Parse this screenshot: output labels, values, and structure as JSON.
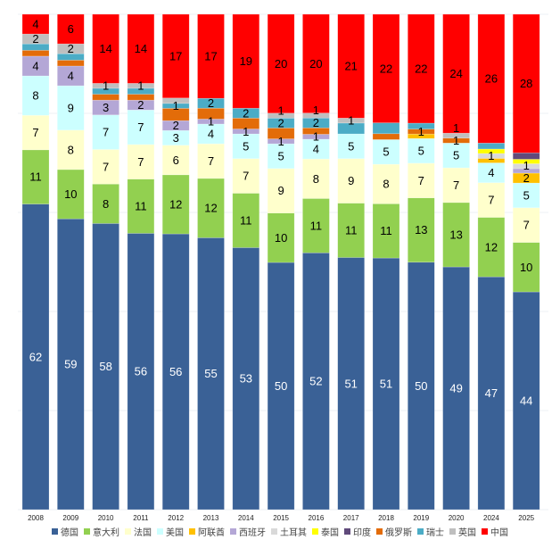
{
  "chart_data": {
    "type": "bar",
    "stacked": true,
    "normalized_percent": true,
    "title": "",
    "xlabel": "",
    "ylabel": "",
    "ylim": [
      0,
      100
    ],
    "legend_position": "bottom",
    "note": "Segments whose values are not whole numbers carry no printed label in the original",
    "categories": [
      "2008",
      "2009",
      "2010",
      "2011",
      "2012",
      "2013",
      "2014",
      "2015",
      "2016",
      "2017",
      "2018",
      "2019",
      "2020",
      "2024",
      "2025"
    ],
    "series": [
      {
        "name": "德国",
        "color": "#3a6196",
        "label_color": "#ffffff",
        "values": [
          62,
          59,
          58,
          56,
          56,
          55,
          53,
          50,
          52,
          51,
          51,
          50,
          49,
          47,
          44
        ]
      },
      {
        "name": "意大利",
        "color": "#92d050",
        "label_color": "#000000",
        "values": [
          11,
          10,
          8,
          11,
          12,
          12,
          11,
          10,
          11,
          11,
          11,
          13,
          13,
          12,
          10
        ]
      },
      {
        "name": "法国",
        "color": "#ffffcc",
        "label_color": "#000000",
        "values": [
          7,
          8,
          7,
          7,
          6,
          7,
          7,
          9,
          8,
          9,
          8,
          7,
          7,
          7,
          7
        ]
      },
      {
        "name": "美国",
        "color": "#ccffff",
        "label_color": "#000000",
        "values": [
          8,
          9,
          7,
          7,
          3,
          4,
          5,
          5,
          4,
          5,
          5,
          5,
          5,
          4,
          5
        ]
      },
      {
        "name": "阿联酋",
        "color": "#ffc000",
        "label_color": "#000000",
        "values": [
          0,
          0,
          0,
          0,
          0,
          0,
          0,
          0,
          0,
          0,
          0,
          0.9,
          0,
          0.9,
          2
        ]
      },
      {
        "name": "西班牙",
        "color": "#b4a7d6",
        "label_color": "#000000",
        "values": [
          4,
          4,
          3,
          2,
          2,
          1,
          1,
          1,
          1,
          0,
          0,
          0,
          0,
          0,
          0.9
        ]
      },
      {
        "name": "土耳其",
        "color": "#d9d9d9",
        "label_color": "#000000",
        "values": [
          0,
          0,
          0,
          0,
          0,
          0,
          0,
          0,
          0,
          0,
          0,
          0,
          0,
          1,
          1
        ]
      },
      {
        "name": "泰国",
        "color": "#ffff00",
        "label_color": "#000000",
        "values": [
          0,
          0,
          0,
          0,
          0,
          0,
          0,
          0,
          0,
          0,
          0,
          0,
          0,
          0.9,
          0.9
        ]
      },
      {
        "name": "印度",
        "color": "#604a7b",
        "label_color": "#000000",
        "values": [
          0,
          0,
          0,
          0,
          0,
          0,
          0,
          0,
          0,
          0,
          0,
          0,
          0,
          0,
          1.3
        ]
      },
      {
        "name": "俄罗斯",
        "color": "#e36c09",
        "label_color": "#000000",
        "values": [
          1.2,
          1.2,
          1.2,
          1.2,
          2.5,
          2.2,
          2.2,
          2.2,
          1.3,
          0,
          1.2,
          1,
          1,
          0,
          0
        ]
      },
      {
        "name": "瑞士",
        "color": "#4bacc6",
        "label_color": "#000000",
        "values": [
          1.3,
          1.3,
          1.2,
          1.2,
          1,
          2,
          2,
          2,
          2,
          2.2,
          2.2,
          1.2,
          0,
          1.2,
          0
        ]
      },
      {
        "name": "英国",
        "color": "#bfbfbf",
        "label_color": "#000000",
        "values": [
          2,
          2,
          1,
          1,
          1.1,
          0,
          0,
          1,
          1,
          1,
          0,
          0,
          1,
          0,
          0
        ]
      },
      {
        "name": "中国",
        "color": "#ff0000",
        "label_color": "#000000",
        "values": [
          4,
          6,
          14,
          14,
          17,
          17,
          19,
          20,
          20,
          21,
          22,
          22,
          24,
          26,
          28
        ]
      }
    ]
  }
}
